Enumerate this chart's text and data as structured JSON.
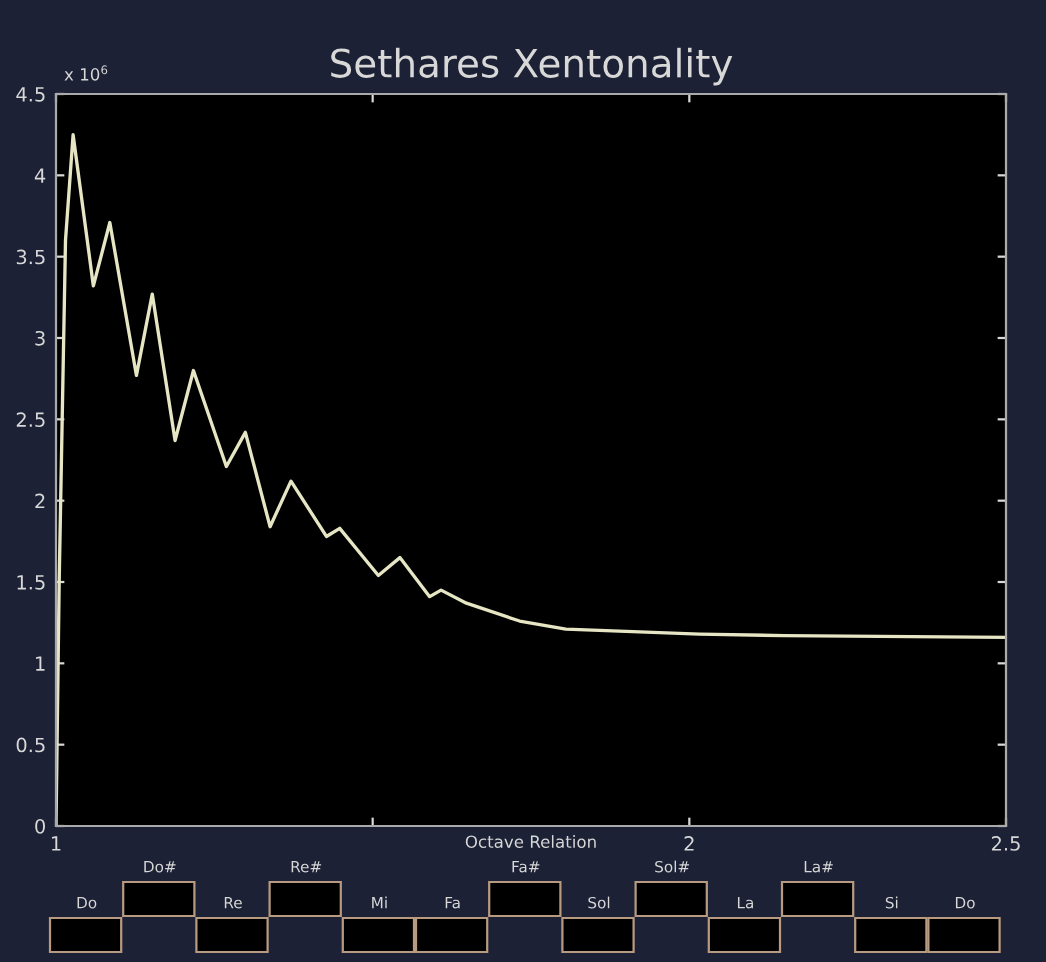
{
  "chart_data": {
    "type": "line",
    "title": "Sethares Xentonality",
    "xlabel": "Octave Relation",
    "x": [
      1.0,
      1.005,
      1.015,
      1.027,
      1.059,
      1.085,
      1.127,
      1.152,
      1.188,
      1.217,
      1.269,
      1.299,
      1.338,
      1.371,
      1.427,
      1.448,
      1.509,
      1.543,
      1.59,
      1.608,
      1.648,
      1.732,
      1.805,
      2.016,
      2.15,
      2.5
    ],
    "series": [
      {
        "color": "#e6e6c4",
        "values": [
          0.0,
          1.5,
          3.6,
          4.25,
          3.32,
          3.71,
          2.77,
          3.27,
          2.37,
          2.8,
          2.21,
          2.42,
          1.84,
          2.12,
          1.78,
          1.83,
          1.54,
          1.65,
          1.41,
          1.45,
          1.37,
          1.26,
          1.21,
          1.18,
          1.17,
          1.16
        ]
      }
    ],
    "xlim": [
      1,
      2.5
    ],
    "xticks": [
      1,
      {
        "value": 1.5,
        "label": null
      },
      2,
      2.5
    ],
    "ylim": [
      0,
      4.5
    ],
    "yticks": [
      0,
      0.5,
      1,
      1.5,
      2,
      2.5,
      3,
      3.5,
      4,
      4.5
    ],
    "grid": false,
    "annotations": [
      "x 10$^{6}$",
      "Do",
      "Do#",
      "Re",
      "Re#",
      "Mi",
      "Fa",
      "Fa#",
      "Sol",
      "Sol#",
      "La",
      "La#",
      "Si",
      "Do"
    ]
  }
}
